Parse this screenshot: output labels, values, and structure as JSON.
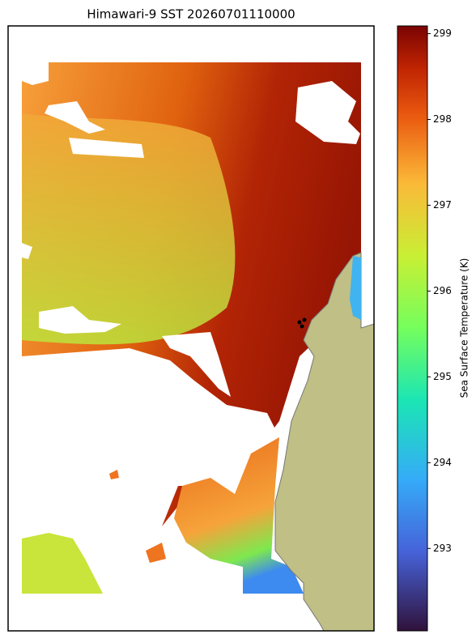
{
  "title": "Himawari-9 SST 20260701110000",
  "colorbar": {
    "label": "Sea Surface Temperature (K)",
    "lim": [
      292.04,
      299.09
    ],
    "ticks": [
      293,
      294,
      295,
      296,
      297,
      298,
      299
    ]
  }
}
